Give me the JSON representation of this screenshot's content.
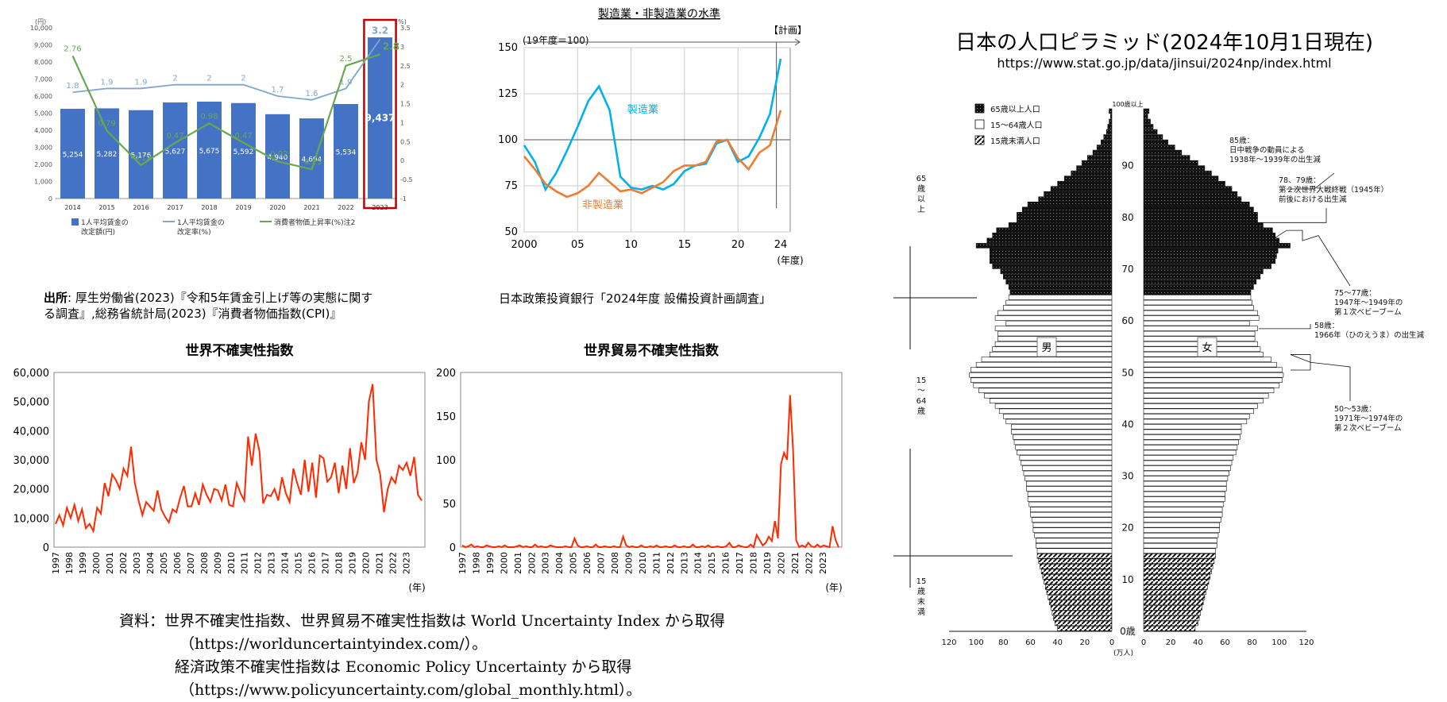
{
  "wage_chart": {
    "y_unit_left": "(円)",
    "y_unit_right": "(%)",
    "chart_data": {
      "type": "bar",
      "categories": [
        "2014",
        "2015",
        "2016",
        "2017",
        "2018",
        "2019",
        "2020",
        "2021",
        "2022",
        "2023"
      ],
      "ylim": [
        0,
        10000
      ],
      "y2lim": [
        -1,
        3.5
      ],
      "yticks": [
        "0",
        "1,000",
        "2,000",
        "3,000",
        "4,000",
        "5,000",
        "6,000",
        "7,000",
        "8,000",
        "9,000",
        "10,000"
      ],
      "y2ticks": [
        "-1",
        "-0.5",
        "0",
        "0.5",
        "1",
        "1.5",
        "2",
        "2.5",
        "3",
        "3.5"
      ],
      "series": [
        {
          "name": "1人平均賃金の改定額(円)",
          "type": "bar",
          "values": [
            5254,
            5282,
            5176,
            5627,
            5675,
            5592,
            4940,
            4694,
            5534,
            9437
          ],
          "labels": [
            "5,254",
            "5,282",
            "5,176",
            "5,627",
            "5,675",
            "5,592",
            "4,940",
            "4,694",
            "5,534",
            "9,437"
          ]
        },
        {
          "name": "1人平均賃金の改定率(%)",
          "type": "line",
          "axis": "right",
          "values": [
            1.8,
            1.9,
            1.9,
            2,
            2,
            2,
            1.7,
            1.6,
            1.9,
            3.2
          ],
          "labels": [
            "1.8",
            "1.9",
            "1.9",
            "2",
            "2",
            "2",
            "1.7",
            "1.6",
            "1.9",
            "3.2"
          ]
        },
        {
          "name": "消費者物価上昇率(%)注2",
          "type": "line",
          "axis": "right",
          "values": [
            2.76,
            0.79,
            -0.12,
            0.47,
            0.98,
            0.47,
            -0.02,
            -0.23,
            2.5,
            2.8
          ],
          "labels": [
            "2.76",
            "0.79",
            "-0.12",
            "0.47",
            "0.98",
            "0.47",
            "-0.02",
            "-0.23",
            "2.5",
            "2.8"
          ]
        }
      ]
    },
    "legend": [
      "1人平均賃金の",
      "改定額(円)",
      "1人平均賃金の",
      "改定率(%)",
      "消費者物価上昇率(%)注2"
    ],
    "source_label": "出所",
    "source_line1": ": 厚生労働省(2023)『令和5年賃金引上げ等の実態に関す",
    "source_line2": "る調査』,総務省統計局(2023)『消費者物価指数(CPI)』",
    "colors": {
      "bar": "#4472c4",
      "rate": "#7fa6cf",
      "cpi": "#6aa84f",
      "highlight": "#c00000"
    }
  },
  "mfg_chart": {
    "title": "製造業・非製造業の水準",
    "base_note": "(19年度＝100)",
    "plan_label": "【計画】",
    "xlabel": "(年度)",
    "series_label_mfg": "製造業",
    "series_label_nonmfg": "非製造業",
    "source": "日本政策投資銀行「2024年度 設備投資計画調査」",
    "chart_data": {
      "type": "line",
      "xlim": [
        2000,
        2024
      ],
      "ylim": [
        50,
        150
      ],
      "xticks": [
        "2000",
        "05",
        "10",
        "15",
        "20",
        "24"
      ],
      "yticks": [
        "50",
        "75",
        "100",
        "125",
        "150"
      ],
      "series": [
        {
          "name": "製造業",
          "x": [
            2000,
            2001,
            2002,
            2003,
            2004,
            2005,
            2006,
            2007,
            2008,
            2009,
            2010,
            2011,
            2012,
            2013,
            2014,
            2015,
            2016,
            2017,
            2018,
            2019,
            2020,
            2021,
            2022,
            2023,
            2024
          ],
          "values": [
            97,
            88,
            73,
            82,
            94,
            107,
            121,
            129,
            116,
            80,
            74,
            73,
            75,
            73,
            76,
            83,
            86,
            87,
            98,
            100,
            88,
            91,
            101,
            114,
            144
          ]
        },
        {
          "name": "非製造業",
          "x": [
            2000,
            2001,
            2002,
            2003,
            2004,
            2005,
            2006,
            2007,
            2008,
            2009,
            2010,
            2011,
            2012,
            2013,
            2014,
            2015,
            2016,
            2017,
            2018,
            2019,
            2020,
            2021,
            2022,
            2023,
            2024
          ],
          "values": [
            91,
            84,
            76,
            72,
            69,
            71,
            75,
            82,
            77,
            72,
            73,
            71,
            74,
            77,
            83,
            86,
            86,
            88,
            99,
            100,
            90,
            84,
            93,
            97,
            116
          ]
        }
      ],
      "colors": {
        "mfg": "#00b0f0",
        "nonmfg": "#ed7d31"
      }
    }
  },
  "wui_chart": {
    "title": "世界不確実性指数",
    "xlabel": "(年)",
    "chart_data": {
      "type": "line",
      "xlim": [
        1997,
        2024
      ],
      "ylim": [
        0,
        60000
      ],
      "yticks": [
        "0",
        "10,000",
        "20,000",
        "30,000",
        "40,000",
        "50,000",
        "60,000"
      ],
      "xticks": [
        "1997",
        "1998",
        "1999",
        "2000",
        "2001",
        "2002",
        "2003",
        "2004",
        "2005",
        "2006",
        "2007",
        "2008",
        "2009",
        "2010",
        "2011",
        "2012",
        "2013",
        "2014",
        "2015",
        "2016",
        "2017",
        "2018",
        "2019",
        "2020",
        "2021",
        "2022",
        "2023"
      ],
      "series": [
        {
          "name": "世界不確実性指数",
          "values": [
            8000,
            11000,
            7500,
            13500,
            10000,
            14500,
            9000,
            13000,
            6500,
            8000,
            5500,
            13500,
            11500,
            22000,
            17500,
            25000,
            23000,
            20000,
            27000,
            24500,
            34500,
            22000,
            16000,
            11000,
            15500,
            14000,
            12500,
            19500,
            13000,
            10500,
            8500,
            13000,
            12000,
            17000,
            21000,
            14000,
            14000,
            18500,
            14500,
            21500,
            18000,
            15500,
            20000,
            19500,
            16000,
            21500,
            14500,
            14000,
            22000,
            18500,
            16000,
            38000,
            28000,
            39000,
            33000,
            15000,
            18000,
            17500,
            20000,
            16000,
            24000,
            18500,
            15500,
            27000,
            22000,
            18000,
            30000,
            19000,
            29000,
            17000,
            31500,
            30500,
            22500,
            24000,
            29000,
            18500,
            28000,
            20000,
            34000,
            22000,
            25500,
            36000,
            30000,
            50000,
            56000,
            30000,
            25000,
            12000,
            20000,
            24000,
            22000,
            28000,
            26500,
            29000,
            24500,
            31000,
            18000,
            16000
          ]
        }
      ],
      "color": "#ff2a00"
    }
  },
  "wtui_chart": {
    "title": "世界貿易不確実性指数",
    "xlabel": "(年)",
    "chart_data": {
      "type": "line",
      "xlim": [
        1997,
        2024
      ],
      "ylim": [
        0,
        200
      ],
      "yticks": [
        "0",
        "50",
        "100",
        "150",
        "200"
      ],
      "xticks": [
        "1997",
        "1998",
        "1999",
        "2000",
        "2001",
        "2002",
        "2003",
        "2004",
        "2005",
        "2006",
        "2007",
        "2008",
        "2009",
        "2010",
        "2011",
        "2012",
        "2013",
        "2014",
        "2015",
        "2016",
        "2017",
        "2018",
        "2019",
        "2020",
        "2021",
        "2022",
        "2023"
      ],
      "series": [
        {
          "name": "世界貿易不確実性指数",
          "values": [
            2,
            0,
            1,
            3,
            0,
            1,
            0,
            0,
            2,
            1,
            0,
            0,
            1,
            0,
            2,
            0,
            0,
            0,
            1,
            2,
            0,
            1,
            0,
            0,
            3,
            0,
            1,
            0,
            0,
            2,
            1,
            0,
            0,
            0,
            1,
            0,
            0,
            10,
            2,
            0,
            0,
            1,
            0,
            0,
            3,
            0,
            0,
            1,
            0,
            0,
            1,
            0,
            0,
            12,
            2,
            0,
            1,
            0,
            0,
            2,
            0,
            0,
            1,
            0,
            2,
            0,
            0,
            1,
            0,
            0,
            2,
            0,
            0,
            1,
            0,
            0,
            3,
            0,
            0,
            1,
            0,
            2,
            0,
            0,
            1,
            0,
            0,
            1,
            5,
            0,
            0,
            2,
            1,
            0,
            0,
            3,
            0,
            14,
            8,
            2,
            5,
            12,
            7,
            30,
            10,
            95,
            108,
            100,
            174,
            110,
            8,
            0,
            2,
            0,
            5,
            1,
            0,
            3,
            0,
            2,
            1,
            0,
            24,
            8,
            0
          ]
        }
      ],
      "color": "#ff2a00"
    }
  },
  "resource_note": {
    "line1": "資料：世界不確実性指数、世界貿易不確実性指数は World Uncertainty Index から取得",
    "line2": "（https://worlduncertaintyindex.com/）。",
    "line3": "経済政策不確実性指数は Economic Policy Uncertainty から取得",
    "line4": "（https://www.policyuncertainty.com/global_monthly.html）。"
  },
  "pyramid": {
    "title": "日本の人口ピラミッド(2024年10月1日現在)",
    "url": "https://www.stat.go.jp/data/jinsui/2024np/index.html",
    "legend": [
      "65歳以上人口",
      "15～64歳人口",
      "15歳未満人口"
    ],
    "male_label": "男",
    "female_label": "女",
    "top_label": "100歳以上",
    "age_ticks": [
      "0歳",
      "10",
      "20",
      "30",
      "40",
      "50",
      "60",
      "70",
      "80",
      "90"
    ],
    "x_ticks_left": [
      "120",
      "100",
      "80",
      "60",
      "40",
      "20",
      "0"
    ],
    "x_ticks_right": [
      "0",
      "20",
      "40",
      "60",
      "80",
      "100",
      "120"
    ],
    "unit": "(万人)",
    "group_65": "65\n歳\n以\n上",
    "group_15_64": "15\n～\n64\n歳",
    "group_under15": "15\n歳\n未\n満",
    "annotations": [
      "85歳：",
      "日中戦争の動員による",
      "1938年～1939年の出生減",
      "78、79歳：",
      "第２次世界大戦終戦（1945年）",
      "前後における出生減",
      "75～77歳：",
      "1947年～1949年の",
      "第１次ベビーブーム",
      "58歳：",
      "1966年（ひのえうま）の出生減",
      "50～53歳：",
      "1971年～1974年の",
      "第２次ベビーブーム"
    ],
    "chart_data": {
      "type": "bar",
      "orientation": "horizontal-pyramid",
      "xlim": [
        0,
        120
      ],
      "ages": "0-100 (1-year bins)",
      "male": [
        40,
        42,
        43,
        44,
        45,
        46,
        47,
        48,
        49,
        50,
        51,
        52,
        53,
        54,
        55,
        55,
        56,
        56,
        57,
        58,
        58,
        59,
        60,
        60,
        61,
        62,
        62,
        63,
        63,
        64,
        65,
        66,
        67,
        68,
        70,
        71,
        72,
        73,
        74,
        74,
        78,
        80,
        83,
        86,
        90,
        94,
        98,
        102,
        104,
        105,
        104,
        100,
        96,
        90,
        88,
        86,
        84,
        84,
        86,
        78,
        86,
        84,
        80,
        78,
        76,
        75,
        76,
        78,
        80,
        82,
        88,
        90,
        90,
        90,
        100,
        92,
        88,
        85,
        76,
        70,
        70,
        66,
        62,
        54,
        50,
        45,
        40,
        35,
        30,
        26,
        22,
        18,
        14,
        11,
        8,
        6,
        4,
        3,
        2,
        1,
        2
      ],
      "female": [
        38,
        40,
        41,
        42,
        43,
        44,
        45,
        46,
        47,
        48,
        49,
        50,
        51,
        52,
        53,
        53,
        54,
        54,
        55,
        56,
        56,
        57,
        58,
        58,
        59,
        60,
        60,
        61,
        61,
        62,
        63,
        64,
        65,
        66,
        68,
        69,
        70,
        71,
        72,
        72,
        76,
        78,
        81,
        84,
        88,
        92,
        96,
        100,
        102,
        103,
        102,
        98,
        94,
        88,
        86,
        84,
        82,
        82,
        84,
        78,
        85,
        84,
        81,
        80,
        79,
        79,
        81,
        83,
        86,
        88,
        94,
        97,
        98,
        99,
        108,
        100,
        97,
        95,
        88,
        84,
        84,
        81,
        78,
        72,
        69,
        65,
        60,
        55,
        50,
        45,
        40,
        34,
        28,
        23,
        18,
        14,
        10,
        7,
        5,
        3,
        4
      ]
    }
  }
}
